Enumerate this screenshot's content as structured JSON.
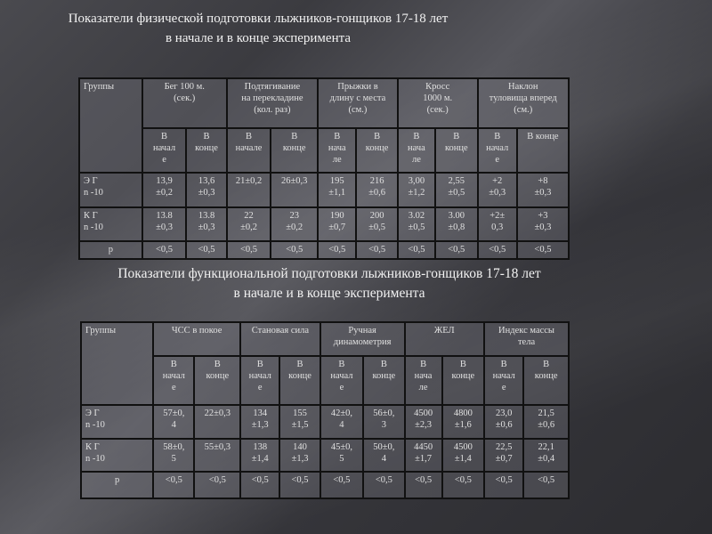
{
  "table1": {
    "title": "Показатели физической подготовки лыжников-гонщиков 17-18 лет\nв начале и в конце эксперимента",
    "groups_header": "Группы",
    "headers": [
      "Бег 100 м.\n(сек.)",
      "Подтягивание\nна перекладине\n(кол. раз)",
      "Прыжки в\nдлину с места\n(см.)",
      "Кросс\n1000 м.\n(сек.)",
      "Наклон\nтуловища вперед\n(см.)"
    ],
    "subheaders": [
      "В\nначал\nе",
      "В\nконце",
      "В\nначале",
      "В\nконце",
      "В\nнача\nле",
      "В\nконце",
      "В\nнача\nле",
      "В\nконце",
      "В\nначал\nе",
      "В конце"
    ],
    "rows": [
      {
        "group": "Э Г\nn -10",
        "values": [
          "13,9\n±0,2",
          "13,6\n±0,3",
          "21±0,2",
          "26±0,3",
          "195\n±1,1",
          "216\n±0,6",
          "3,00\n±1,2",
          "2,55\n±0,5",
          "+2\n±0,3",
          "+8\n±0,3"
        ]
      },
      {
        "group": "К Г\nn -10",
        "values": [
          "13.8\n±0,3",
          "13.8\n±0,3",
          "22\n±0,2",
          "23\n±0,2",
          "190\n±0,7",
          "200\n±0,5",
          "3.02\n±0,5",
          "3.00\n±0,8",
          "+2±\n0,3",
          "+3\n±0,3"
        ]
      },
      {
        "group": "p",
        "values": [
          "<0,5",
          "<0,5",
          "<0,5",
          "<0,5",
          "<0,5",
          "<0,5",
          "<0,5",
          "<0,5",
          "<0,5",
          "<0,5"
        ]
      }
    ]
  },
  "table2": {
    "title": "Показатели функциональной подготовки лыжников-гонщиков 17-18 лет\nв начале и в конце эксперимента",
    "groups_header": "Группы",
    "headers": [
      "ЧСС в покое",
      "Становая сила",
      "Ручная\nдинамометрия",
      "ЖЕЛ",
      "Индекс массы\nтела"
    ],
    "subheaders": [
      "В\nначал\nе",
      "В\nконце",
      "В\nначал\nе",
      "В\nконце",
      "В\nначал\nе",
      "В\nконце",
      "В\nнача\nле",
      "В\nконце",
      "В\nначал\nе",
      "В\nконце"
    ],
    "rows": [
      {
        "group": "Э Г\nn -10",
        "values": [
          "57±0,\n4",
          "22±0,3",
          "134\n±1,3",
          "155\n±1,5",
          "42±0,\n4",
          "56±0,\n3",
          "4500\n±2,3",
          "4800\n±1,6",
          "23,0\n±0,6",
          "21,5\n±0,6"
        ]
      },
      {
        "group": "К Г\nn -10",
        "values": [
          "58±0,\n5",
          "55±0,3",
          "138\n±1,4",
          "140\n±1,3",
          "45±0,\n5",
          "50±0,\n4",
          "4450\n±1,7",
          "4500\n±1,4",
          "22,5\n±0,7",
          "22,1\n±0,4"
        ]
      },
      {
        "group": "p",
        "values": [
          "<0,5",
          "<0,5",
          "<0,5",
          "<0,5",
          "<0,5",
          "<0,5",
          "<0,5",
          "<0,5",
          "<0,5",
          "<0,5"
        ]
      }
    ]
  }
}
